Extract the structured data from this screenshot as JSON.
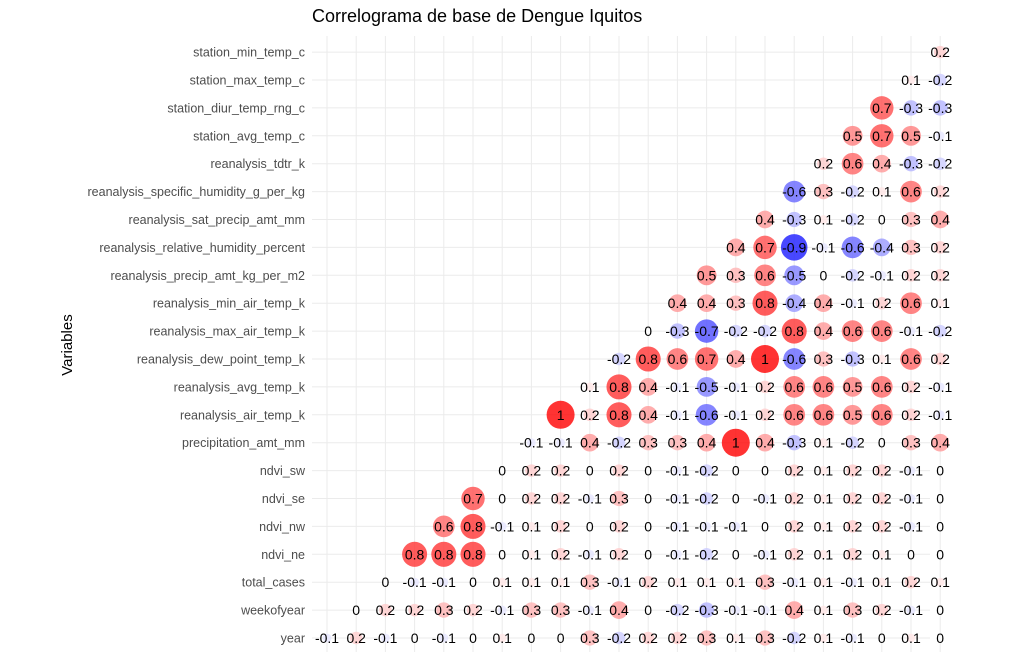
{
  "chart_data": {
    "type": "heatmap",
    "title": "Correlograma de base de Dengue Iquitos",
    "ylabel": "Variables",
    "xlabel": "",
    "variables": [
      "year",
      "weekofyear",
      "total_cases",
      "ndvi_ne",
      "ndvi_nw",
      "ndvi_se",
      "ndvi_sw",
      "precipitation_amt_mm",
      "reanalysis_air_temp_k",
      "reanalysis_avg_temp_k",
      "reanalysis_dew_point_temp_k",
      "reanalysis_max_air_temp_k",
      "reanalysis_min_air_temp_k",
      "reanalysis_precip_amt_kg_per_m2",
      "reanalysis_relative_humidity_percent",
      "reanalysis_sat_precip_amt_mm",
      "reanalysis_specific_humidity_g_per_kg",
      "reanalysis_tdtr_k",
      "station_avg_temp_c",
      "station_diur_temp_rng_c",
      "station_max_temp_c",
      "station_min_temp_c"
    ],
    "rows": [
      {
        "label": "year",
        "values": [
          -0.1,
          0.2,
          -0.1,
          0,
          -0.1,
          0,
          0.1,
          0,
          0,
          0.3,
          -0.2,
          0.2,
          0.2,
          0.3,
          0.1,
          0.3,
          -0.2,
          0.1,
          -0.1,
          0,
          0.1,
          0
        ]
      },
      {
        "label": "weekofyear",
        "values": [
          0,
          0.2,
          0.2,
          0.3,
          0.2,
          -0.1,
          0.3,
          0.3,
          -0.1,
          0.4,
          0,
          -0.2,
          -0.3,
          -0.1,
          -0.1,
          0.4,
          0.1,
          0.3,
          0.2,
          -0.1,
          0
        ]
      },
      {
        "label": "total_cases",
        "values": [
          0,
          -0.1,
          -0.1,
          0,
          0.1,
          0.1,
          0.1,
          0.3,
          -0.1,
          0.2,
          0.1,
          0.1,
          0.1,
          0.3,
          -0.1,
          0.1,
          -0.1,
          0.1,
          0.2,
          0.1
        ]
      },
      {
        "label": "ndvi_ne",
        "values": [
          0.8,
          0.8,
          0.8,
          0,
          0.1,
          0.2,
          -0.1,
          0.2,
          0,
          -0.1,
          -0.2,
          0,
          -0.1,
          0.2,
          0.1,
          0.2,
          0.1,
          0,
          0
        ]
      },
      {
        "label": "ndvi_nw",
        "values": [
          0.6,
          0.8,
          -0.1,
          0.1,
          0.2,
          0,
          0.2,
          0,
          -0.1,
          -0.1,
          -0.1,
          0,
          0.2,
          0.1,
          0.2,
          0.2,
          -0.1,
          0
        ]
      },
      {
        "label": "ndvi_se",
        "values": [
          0.7,
          0,
          0.2,
          0.2,
          -0.1,
          0.3,
          0,
          -0.1,
          -0.2,
          0,
          -0.1,
          0.2,
          0.1,
          0.2,
          0.2,
          -0.1,
          0
        ]
      },
      {
        "label": "ndvi_sw",
        "values": [
          0,
          0.2,
          0.2,
          0,
          0.2,
          0,
          -0.1,
          -0.2,
          0,
          0,
          0.2,
          0.1,
          0.2,
          0.2,
          -0.1,
          0
        ]
      },
      {
        "label": "precipitation_amt_mm",
        "values": [
          -0.1,
          -0.1,
          0.4,
          -0.2,
          0.3,
          0.3,
          0.4,
          1,
          0.4,
          -0.3,
          0.1,
          -0.2,
          0,
          0.3,
          0.4
        ]
      },
      {
        "label": "reanalysis_air_temp_k",
        "values": [
          1,
          0.2,
          0.8,
          0.4,
          -0.1,
          -0.6,
          -0.1,
          0.2,
          0.6,
          0.6,
          0.5,
          0.6,
          0.2,
          -0.1
        ]
      },
      {
        "label": "reanalysis_avg_temp_k",
        "values": [
          0.1,
          0.8,
          0.4,
          -0.1,
          -0.5,
          -0.1,
          0.2,
          0.6,
          0.6,
          0.5,
          0.6,
          0.2,
          -0.1
        ]
      },
      {
        "label": "reanalysis_dew_point_temp_k",
        "values": [
          -0.2,
          0.8,
          0.6,
          0.7,
          0.4,
          1,
          -0.6,
          0.3,
          -0.3,
          0.1,
          0.6,
          0.2
        ]
      },
      {
        "label": "reanalysis_max_air_temp_k",
        "values": [
          0,
          -0.3,
          -0.7,
          -0.2,
          -0.2,
          0.8,
          0.4,
          0.6,
          0.6,
          -0.1,
          -0.2
        ]
      },
      {
        "label": "reanalysis_min_air_temp_k",
        "values": [
          0.4,
          0.4,
          0.3,
          0.8,
          -0.4,
          0.4,
          -0.1,
          0.2,
          0.6,
          0.1
        ]
      },
      {
        "label": "reanalysis_precip_amt_kg_per_m2",
        "values": [
          0.5,
          0.3,
          0.6,
          -0.5,
          0,
          -0.2,
          -0.1,
          0.2,
          0.2
        ]
      },
      {
        "label": "reanalysis_relative_humidity_percent",
        "values": [
          0.4,
          0.7,
          -0.9,
          -0.1,
          -0.6,
          -0.4,
          0.3,
          0.2
        ]
      },
      {
        "label": "reanalysis_sat_precip_amt_mm",
        "values": [
          0.4,
          -0.3,
          0.1,
          -0.2,
          0,
          0.3,
          0.4
        ]
      },
      {
        "label": "reanalysis_specific_humidity_g_per_kg",
        "values": [
          -0.6,
          0.3,
          -0.2,
          0.1,
          0.6,
          0.2
        ]
      },
      {
        "label": "reanalysis_tdtr_k",
        "values": [
          0.2,
          0.6,
          0.4,
          -0.3,
          -0.2
        ]
      },
      {
        "label": "station_avg_temp_c",
        "values": [
          0.5,
          0.7,
          0.5,
          -0.1
        ]
      },
      {
        "label": "station_diur_temp_rng_c",
        "values": [
          0.7,
          -0.3,
          -0.3
        ]
      },
      {
        "label": "station_max_temp_c",
        "values": [
          0.1,
          -0.2
        ]
      },
      {
        "label": "station_min_temp_c",
        "values": [
          0.2
        ]
      }
    ],
    "value_range": [
      -1,
      1
    ],
    "colors": {
      "negative": "#0000ff",
      "neutral": "#ffffff",
      "positive": "#ff0000"
    },
    "grid": true,
    "legend": "none"
  }
}
